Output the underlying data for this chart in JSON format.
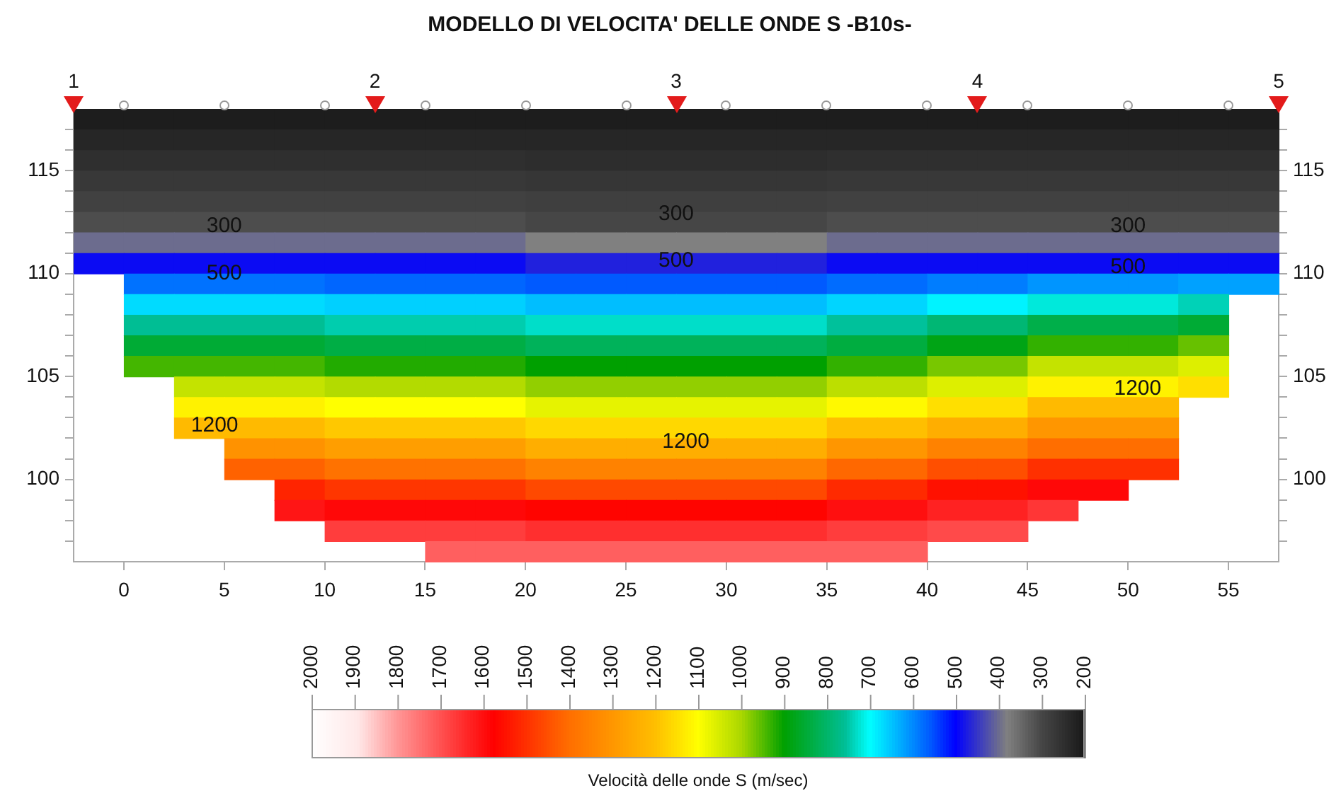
{
  "chart_data": {
    "type": "heatmap",
    "title": "MODELLO DI VELOCITA' DELLE ONDE S -B10s-",
    "clabel": "Velocità delle onde S (m/sec)",
    "xlim": [
      -2.5,
      57.5
    ],
    "ylim": [
      96,
      118
    ],
    "y2lim": [
      96,
      118
    ],
    "xticks": [
      0,
      5,
      10,
      15,
      20,
      25,
      30,
      35,
      40,
      45,
      50,
      55
    ],
    "yticks": [
      {
        "value": 97,
        "label": null
      },
      {
        "value": 98,
        "label": null
      },
      {
        "value": 99,
        "label": null
      },
      100,
      {
        "value": 101,
        "label": null
      },
      {
        "value": 102,
        "label": null
      },
      {
        "value": 103,
        "label": null
      },
      {
        "value": 104,
        "label": null
      },
      105,
      {
        "value": 106,
        "label": null
      },
      {
        "value": 107,
        "label": null
      },
      {
        "value": 108,
        "label": null
      },
      {
        "value": 109,
        "label": null
      },
      110,
      {
        "value": 111,
        "label": null
      },
      {
        "value": 112,
        "label": null
      },
      {
        "value": 113,
        "label": null
      },
      {
        "value": 114,
        "label": null
      },
      115,
      {
        "value": 116,
        "label": null
      },
      {
        "value": 117,
        "label": null
      }
    ],
    "y2ticks": [
      {
        "value": 97,
        "label": null
      },
      {
        "value": 98,
        "label": null
      },
      {
        "value": 99,
        "label": null
      },
      100,
      {
        "value": 101,
        "label": null
      },
      {
        "value": 102,
        "label": null
      },
      {
        "value": 103,
        "label": null
      },
      {
        "value": 104,
        "label": null
      },
      105,
      {
        "value": 106,
        "label": null
      },
      {
        "value": 107,
        "label": null
      },
      {
        "value": 108,
        "label": null
      },
      {
        "value": 109,
        "label": null
      },
      110,
      {
        "value": 111,
        "label": null
      },
      {
        "value": 112,
        "label": null
      },
      {
        "value": 113,
        "label": null
      },
      {
        "value": 114,
        "label": null
      },
      115,
      {
        "value": 116,
        "label": null
      },
      {
        "value": 117,
        "label": null
      }
    ],
    "clim": [
      2000,
      200
    ],
    "cticks": [
      2000,
      1900,
      1800,
      1700,
      1600,
      1500,
      1400,
      1300,
      1200,
      1100,
      1000,
      900,
      800,
      700,
      600,
      500,
      400,
      300,
      200
    ],
    "cells": [
      [
        210,
        210,
        210,
        210,
        210,
        210,
        210,
        210,
        210,
        210,
        210,
        210,
        210,
        210,
        210,
        210,
        210,
        210,
        210,
        210,
        210,
        210,
        210,
        210
      ],
      [
        230,
        230,
        230,
        230,
        230,
        230,
        230,
        230,
        230,
        230,
        230,
        230,
        230,
        230,
        230,
        230,
        230,
        230,
        230,
        230,
        230,
        230,
        230,
        230
      ],
      [
        250,
        250,
        250,
        250,
        250,
        250,
        250,
        250,
        250,
        245,
        245,
        245,
        245,
        245,
        245,
        250,
        250,
        250,
        250,
        250,
        250,
        250,
        250,
        250
      ],
      [
        270,
        270,
        270,
        270,
        270,
        270,
        270,
        270,
        270,
        265,
        265,
        265,
        265,
        265,
        265,
        270,
        270,
        270,
        270,
        270,
        270,
        270,
        270,
        270
      ],
      [
        290,
        290,
        290,
        290,
        290,
        290,
        290,
        290,
        290,
        285,
        285,
        285,
        285,
        285,
        285,
        290,
        290,
        290,
        290,
        290,
        290,
        290,
        290,
        290
      ],
      [
        310,
        310,
        310,
        310,
        310,
        310,
        310,
        310,
        310,
        300,
        300,
        300,
        300,
        300,
        300,
        310,
        310,
        310,
        310,
        310,
        310,
        310,
        310,
        310
      ],
      [
        400,
        400,
        400,
        400,
        400,
        400,
        400,
        400,
        400,
        380,
        380,
        380,
        380,
        380,
        380,
        400,
        400,
        400,
        400,
        400,
        400,
        400,
        400,
        400
      ],
      [
        490,
        490,
        490,
        490,
        490,
        490,
        490,
        490,
        490,
        470,
        470,
        470,
        470,
        470,
        470,
        490,
        490,
        490,
        490,
        490,
        490,
        490,
        490,
        490
      ],
      [
        null,
        580,
        580,
        580,
        580,
        570,
        570,
        570,
        570,
        560,
        560,
        560,
        560,
        560,
        560,
        575,
        575,
        590,
        590,
        610,
        610,
        610,
        620,
        620
      ],
      [
        null,
        670,
        670,
        670,
        670,
        660,
        660,
        660,
        660,
        645,
        645,
        645,
        645,
        645,
        645,
        665,
        665,
        690,
        690,
        720,
        720,
        720,
        740,
        null
      ],
      [
        null,
        760,
        760,
        760,
        760,
        745,
        745,
        745,
        745,
        730,
        730,
        730,
        730,
        730,
        730,
        755,
        755,
        790,
        790,
        830,
        830,
        830,
        850,
        null
      ],
      [
        null,
        850,
        850,
        850,
        850,
        835,
        835,
        835,
        835,
        815,
        815,
        815,
        815,
        815,
        815,
        840,
        840,
        880,
        880,
        930,
        930,
        930,
        960,
        null
      ],
      [
        null,
        940,
        940,
        940,
        940,
        920,
        920,
        920,
        920,
        900,
        900,
        900,
        900,
        900,
        900,
        930,
        930,
        970,
        970,
        1030,
        1030,
        1030,
        1060,
        null
      ],
      [
        null,
        null,
        1030,
        1030,
        1030,
        1010,
        1010,
        1010,
        1010,
        985,
        985,
        985,
        985,
        985,
        985,
        1020,
        1020,
        1060,
        1060,
        1120,
        1120,
        1120,
        1150,
        null
      ],
      [
        null,
        null,
        1120,
        1120,
        1120,
        1100,
        1100,
        1100,
        1100,
        1070,
        1070,
        1070,
        1070,
        1070,
        1070,
        1110,
        1110,
        1150,
        1150,
        1210,
        1210,
        1210,
        null,
        null
      ],
      [
        null,
        null,
        1210,
        1210,
        1210,
        1185,
        1185,
        1185,
        1185,
        1160,
        1160,
        1160,
        1160,
        1160,
        1160,
        1200,
        1200,
        1240,
        1240,
        1300,
        1300,
        1300,
        null,
        null
      ],
      [
        null,
        null,
        null,
        1310,
        1310,
        1280,
        1280,
        1280,
        1280,
        1240,
        1240,
        1240,
        1240,
        1240,
        1240,
        1300,
        1300,
        1350,
        1350,
        1400,
        1400,
        1400,
        null,
        null
      ],
      [
        null,
        null,
        null,
        1420,
        1420,
        1390,
        1390,
        1390,
        1390,
        1350,
        1350,
        1350,
        1350,
        1350,
        1350,
        1410,
        1410,
        1450,
        1450,
        1500,
        1500,
        1500,
        null,
        null
      ],
      [
        null,
        null,
        null,
        null,
        1520,
        1490,
        1490,
        1490,
        1490,
        1460,
        1460,
        1460,
        1460,
        1460,
        1460,
        1510,
        1510,
        1550,
        1550,
        1590,
        1590,
        null,
        null,
        null
      ],
      [
        null,
        null,
        null,
        null,
        1610,
        1590,
        1590,
        1590,
        1590,
        1570,
        1570,
        1570,
        1570,
        1570,
        1570,
        1600,
        1600,
        1630,
        1630,
        1660,
        null,
        null,
        null,
        null
      ],
      [
        null,
        null,
        null,
        null,
        null,
        1670,
        1670,
        1670,
        1670,
        1650,
        1650,
        1650,
        1650,
        1650,
        1650,
        1670,
        1670,
        1690,
        1690,
        null,
        null,
        null,
        null,
        null
      ],
      [
        null,
        null,
        null,
        null,
        null,
        null,
        null,
        1720,
        1720,
        1720,
        1720,
        1720,
        1720,
        1720,
        1720,
        1720,
        1720,
        null,
        null,
        null,
        null,
        null,
        null,
        null
      ]
    ],
    "annotations": [
      "1",
      "2",
      "3",
      "4",
      "5",
      "300",
      "300",
      "300",
      "500",
      "500",
      "500",
      "1200",
      "1200",
      "1200"
    ]
  }
}
